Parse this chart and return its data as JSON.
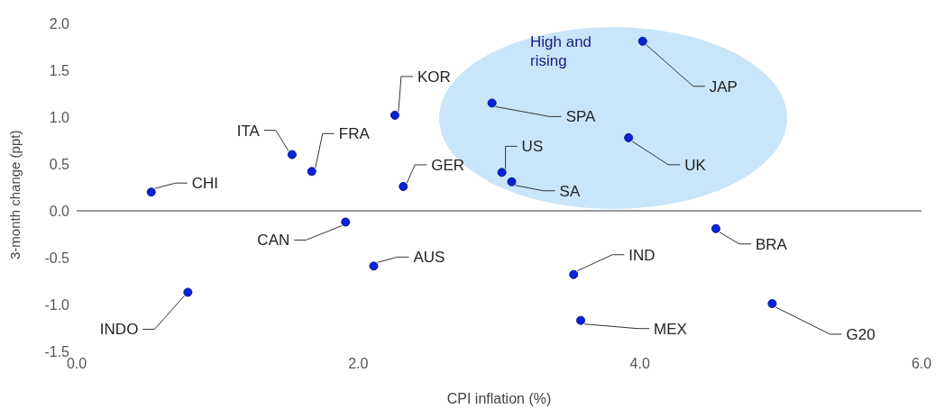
{
  "chart_data": {
    "type": "scatter",
    "xlabel": "CPI inflation (%)",
    "ylabel": "3-month change (ppt)",
    "x": [
      0.53,
      1.53,
      1.67,
      2.26,
      2.32,
      1.91,
      2.11,
      0.79,
      2.95,
      3.02,
      3.09,
      4.02,
      3.92,
      3.53,
      3.58,
      4.54,
      4.94
    ],
    "values": [
      0.2,
      0.6,
      0.42,
      1.02,
      0.26,
      -0.12,
      -0.59,
      -0.87,
      1.15,
      0.41,
      0.31,
      1.81,
      0.78,
      -0.68,
      -1.17,
      -0.19,
      -0.99
    ],
    "color": "#0a22d6",
    "marker": "circle",
    "xlim": [
      0,
      6
    ],
    "xticks": [
      {
        "value": 0,
        "label": "0.0"
      },
      {
        "value": 2,
        "label": "2.0"
      },
      {
        "value": 4,
        "label": "4.0"
      },
      {
        "value": 6,
        "label": "6.0"
      }
    ],
    "ylim": [
      -1.5,
      2
    ],
    "yticks": [
      {
        "value": -1.5,
        "label": "-1.5"
      },
      {
        "value": -1,
        "label": "-1.0"
      },
      {
        "value": -0.5,
        "label": "-0.5"
      },
      {
        "value": 0,
        "label": "0.0"
      },
      {
        "value": 0.5,
        "label": "0.5"
      },
      {
        "value": 1,
        "label": "1.0"
      },
      {
        "value": 1.5,
        "label": "1.5"
      },
      {
        "value": 2,
        "label": "2.0"
      }
    ],
    "grid": false,
    "ref_lines": [
      {
        "axis": "y",
        "value": 0,
        "color": "#333333"
      }
    ],
    "annotations": [
      {
        "text": "CHI",
        "x": 0.53,
        "y": 0.2
      },
      {
        "text": "ITA",
        "x": 1.53,
        "y": 0.6
      },
      {
        "text": "FRA",
        "x": 1.67,
        "y": 0.42
      },
      {
        "text": "KOR",
        "x": 2.26,
        "y": 1.02
      },
      {
        "text": "GER",
        "x": 2.32,
        "y": 0.26
      },
      {
        "text": "CAN",
        "x": 1.91,
        "y": -0.12
      },
      {
        "text": "AUS",
        "x": 2.11,
        "y": -0.59
      },
      {
        "text": "INDO",
        "x": 0.79,
        "y": -0.87
      },
      {
        "text": "SPA",
        "x": 2.95,
        "y": 1.15
      },
      {
        "text": "US",
        "x": 3.02,
        "y": 0.41
      },
      {
        "text": "SA",
        "x": 3.09,
        "y": 0.31
      },
      {
        "text": "JAP",
        "x": 4.02,
        "y": 1.81
      },
      {
        "text": "UK",
        "x": 3.92,
        "y": 0.78
      },
      {
        "text": "IND",
        "x": 3.53,
        "y": -0.68
      },
      {
        "text": "MEX",
        "x": 3.58,
        "y": -1.17
      },
      {
        "text": "BRA",
        "x": 4.54,
        "y": -0.19
      },
      {
        "text": "G20",
        "x": 4.94,
        "y": -0.99
      },
      "High and rising"
    ]
  }
}
